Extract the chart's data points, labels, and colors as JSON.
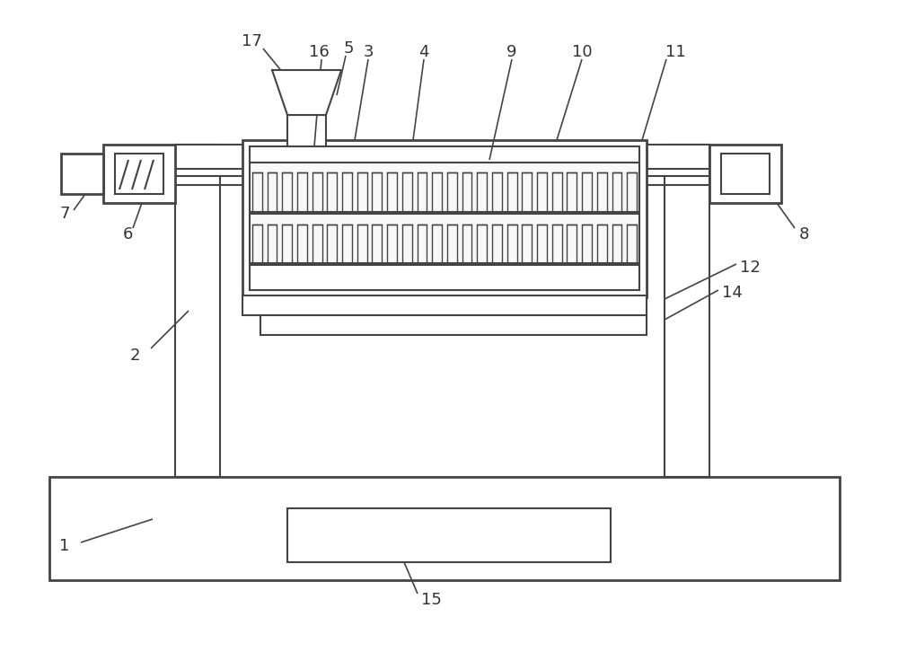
{
  "bg_color": "#ffffff",
  "lc": "#444444",
  "lw": 1.5,
  "tlw": 2.0
}
